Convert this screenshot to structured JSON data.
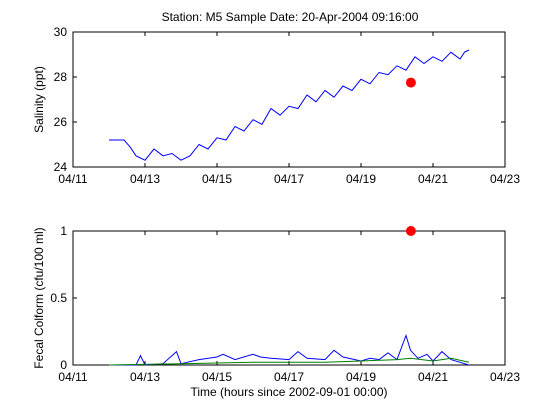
{
  "chart_data": [
    {
      "type": "line",
      "title": "Station: M5  Sample Date: 20-Apr-2004 09:16:00",
      "xlabel": "",
      "ylabel": "Salinity (ppt)",
      "xlim": [
        "2004-04-11",
        "2004-04-23"
      ],
      "ylim": [
        24,
        30
      ],
      "xticks": [
        "04/11",
        "04/13",
        "04/15",
        "04/17",
        "04/19",
        "04/21",
        "04/23"
      ],
      "yticks": [
        "24",
        "26",
        "28",
        "30"
      ],
      "grid": false,
      "series": [
        {
          "color": "#0000ff",
          "x": [
            "2004-04-12 00:00",
            "2004-04-12 06:00",
            "2004-04-12 10:00",
            "2004-04-12 14:00",
            "2004-04-12 18:00",
            "2004-04-13 00:00",
            "2004-04-13 06:00",
            "2004-04-13 12:00",
            "2004-04-13 18:00",
            "2004-04-14 00:00",
            "2004-04-14 06:00",
            "2004-04-14 12:00",
            "2004-04-14 18:00",
            "2004-04-15 00:00",
            "2004-04-15 06:00",
            "2004-04-15 12:00",
            "2004-04-15 18:00",
            "2004-04-16 00:00",
            "2004-04-16 06:00",
            "2004-04-16 12:00",
            "2004-04-16 18:00",
            "2004-04-17 00:00",
            "2004-04-17 06:00",
            "2004-04-17 12:00",
            "2004-04-17 18:00",
            "2004-04-18 00:00",
            "2004-04-18 06:00",
            "2004-04-18 12:00",
            "2004-04-18 18:00",
            "2004-04-19 00:00",
            "2004-04-19 06:00",
            "2004-04-19 12:00",
            "2004-04-19 18:00",
            "2004-04-20 00:00",
            "2004-04-20 06:00",
            "2004-04-20 12:00",
            "2004-04-20 18:00",
            "2004-04-21 00:00",
            "2004-04-21 06:00",
            "2004-04-21 12:00",
            "2004-04-21 18:00",
            "2004-04-21 21:00",
            "2004-04-22 00:00"
          ],
          "values": [
            25.2,
            25.2,
            25.2,
            24.9,
            24.5,
            24.3,
            24.8,
            24.5,
            24.6,
            24.3,
            24.5,
            25.0,
            24.8,
            25.3,
            25.2,
            25.8,
            25.6,
            26.1,
            25.9,
            26.6,
            26.3,
            26.7,
            26.6,
            27.2,
            26.9,
            27.4,
            27.1,
            27.6,
            27.4,
            27.9,
            27.7,
            28.2,
            28.1,
            28.5,
            28.3,
            28.9,
            28.6,
            28.9,
            28.7,
            29.1,
            28.8,
            29.1,
            29.2
          ]
        }
      ],
      "markers": [
        {
          "x": "2004-04-20 09:16",
          "y": 27.75,
          "color": "#ff0000"
        }
      ]
    },
    {
      "type": "line",
      "title": "",
      "xlabel": "Time (hours since 2002-09-01 00:00)",
      "ylabel": "Fecal Colform (cfu/100 ml)",
      "xlim": [
        "2004-04-11",
        "2004-04-23"
      ],
      "ylim": [
        0,
        1.0
      ],
      "xticks": [
        "04/11",
        "04/13",
        "04/15",
        "04/17",
        "04/19",
        "04/21",
        "04/23"
      ],
      "yticks": [
        "0",
        "0.5",
        "1"
      ],
      "grid": false,
      "series": [
        {
          "color": "#0000ff",
          "x": [
            "2004-04-12 00:00",
            "2004-04-12 18:00",
            "2004-04-12 21:00",
            "2004-04-13 00:00",
            "2004-04-13 12:00",
            "2004-04-13 21:00",
            "2004-04-14 00:00",
            "2004-04-14 04:00",
            "2004-04-14 12:00",
            "2004-04-15 00:00",
            "2004-04-15 04:00",
            "2004-04-15 12:00",
            "2004-04-16 00:00",
            "2004-04-16 05:00",
            "2004-04-16 12:00",
            "2004-04-17 00:00",
            "2004-04-17 06:00",
            "2004-04-17 12:00",
            "2004-04-18 00:00",
            "2004-04-18 06:00",
            "2004-04-18 12:00",
            "2004-04-19 00:00",
            "2004-04-19 06:00",
            "2004-04-19 12:00",
            "2004-04-19 18:00",
            "2004-04-20 00:00",
            "2004-04-20 06:00",
            "2004-04-20 09:00",
            "2004-04-20 14:00",
            "2004-04-20 20:00",
            "2004-04-21 00:00",
            "2004-04-21 06:00",
            "2004-04-21 12:00",
            "2004-04-21 18:00",
            "2004-04-22 00:00"
          ],
          "values": [
            0.0,
            0.0,
            0.07,
            0.0,
            0.01,
            0.1,
            0.01,
            0.02,
            0.04,
            0.06,
            0.08,
            0.04,
            0.08,
            0.06,
            0.05,
            0.04,
            0.1,
            0.05,
            0.04,
            0.11,
            0.06,
            0.03,
            0.05,
            0.04,
            0.09,
            0.04,
            0.22,
            0.11,
            0.05,
            0.08,
            0.03,
            0.1,
            0.04,
            0.02,
            0.0
          ]
        },
        {
          "color": "#008000",
          "x": [
            "2004-04-12 00:00",
            "2004-04-14 00:00",
            "2004-04-16 00:00",
            "2004-04-18 00:00",
            "2004-04-19 00:00",
            "2004-04-20 00:00",
            "2004-04-20 09:00",
            "2004-04-21 00:00",
            "2004-04-21 12:00",
            "2004-04-22 00:00"
          ],
          "values": [
            0.0,
            0.01,
            0.02,
            0.02,
            0.03,
            0.04,
            0.05,
            0.03,
            0.05,
            0.02
          ]
        }
      ],
      "markers": [
        {
          "x": "2004-04-20 09:16",
          "y": 1.0,
          "color": "#ff0000"
        }
      ]
    }
  ]
}
